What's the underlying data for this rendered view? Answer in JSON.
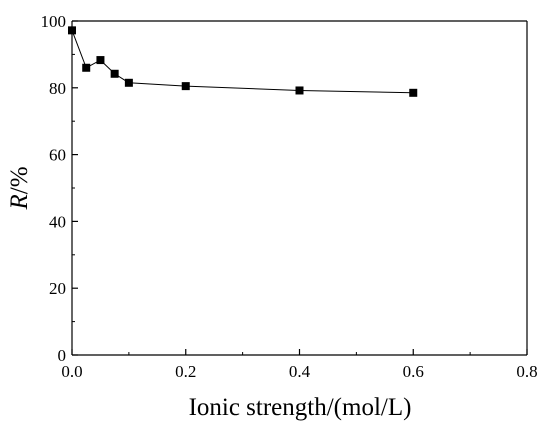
{
  "chart_data": {
    "type": "line",
    "title": "",
    "xlabel": "Ionic strength/(mol/L)",
    "ylabel_italic": "R",
    "ylabel_rest": "/%",
    "xlim": [
      0.0,
      0.8
    ],
    "ylim": [
      0,
      100
    ],
    "xticks": [
      0.0,
      0.2,
      0.4,
      0.6,
      0.8
    ],
    "xtick_labels": [
      "0.0",
      "0.2",
      "0.4",
      "0.6",
      "0.8"
    ],
    "yticks": [
      0,
      20,
      40,
      60,
      80,
      100
    ],
    "ytick_labels": [
      "0",
      "20",
      "40",
      "60",
      "80",
      "100"
    ],
    "grid": false,
    "legend": "none",
    "series": [
      {
        "marker": "square",
        "color": "#000000",
        "x": [
          0.0,
          0.025,
          0.05,
          0.075,
          0.1,
          0.2,
          0.4,
          0.6
        ],
        "y": [
          97.2,
          86.0,
          88.3,
          84.2,
          81.5,
          80.5,
          79.2,
          78.5
        ]
      }
    ]
  }
}
